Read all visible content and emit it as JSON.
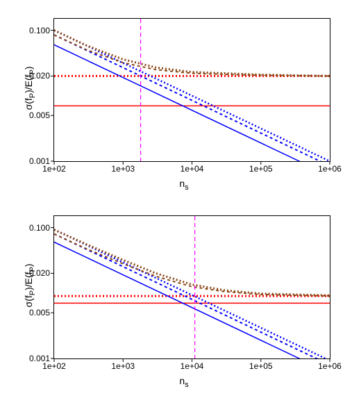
{
  "global": {
    "bg": "#ffffff",
    "axis_color": "#000000",
    "tick_font_size": 12,
    "label_font_size": 14
  },
  "panels": [
    {
      "id": "panel1",
      "xlabel_html": "n<sub class='sub'>s</sub>",
      "ylabel_html": "σ(f<sub class='sub'>P</sub>)/E(f<sub class='sub'>P</sub>)",
      "xscale": "log",
      "xlim": [
        100,
        1000000
      ],
      "yscale": "log",
      "ylim": [
        0.001,
        0.15
      ],
      "xticks": [
        {
          "v": 100,
          "label": "1e+02"
        },
        {
          "v": 1000,
          "label": "1e+03"
        },
        {
          "v": 10000,
          "label": "1e+04"
        },
        {
          "v": 100000,
          "label": "1e+05"
        },
        {
          "v": 1000000,
          "label": "1e+06"
        }
      ],
      "yticks": [
        {
          "v": 0.001,
          "label": "0.001"
        },
        {
          "v": 0.005,
          "label": "0.005"
        },
        {
          "v": 0.02,
          "label": "0.020"
        },
        {
          "v": 0.1,
          "label": "0.100"
        }
      ],
      "vline": {
        "x": 1800,
        "color": "#ff00ff",
        "dash": "6,4",
        "width": 1.2
      },
      "hlines": [
        {
          "y": 0.007,
          "color": "#ff0000",
          "dash": null,
          "width": 1.5
        },
        {
          "y": 0.02,
          "color": "#ff0000",
          "dash": "2,3",
          "width": 3
        }
      ],
      "series": [
        {
          "type": "line",
          "color": "#0000ff",
          "dash": null,
          "width": 1.5,
          "pts": [
            {
              "x": 100,
              "y": 0.06
            },
            {
              "x": 1000000,
              "y": 0.0006
            }
          ]
        },
        {
          "type": "line",
          "color": "#0000ff",
          "dash": "4,4",
          "width": 2,
          "pts": [
            {
              "x": 100,
              "y": 0.085
            },
            {
              "x": 1000000,
              "y": 0.00085
            }
          ]
        },
        {
          "type": "line",
          "color": "#0000ff",
          "dash": "2,3",
          "width": 2.5,
          "pts": [
            {
              "x": 100,
              "y": 0.1
            },
            {
              "x": 1000000,
              "y": 0.001
            }
          ]
        },
        {
          "type": "curve",
          "color": "#8b4513",
          "dash": "4,4",
          "width": 2,
          "pts": [
            {
              "x": 100,
              "y": 0.085
            },
            {
              "x": 300,
              "y": 0.05
            },
            {
              "x": 1000,
              "y": 0.032
            },
            {
              "x": 3000,
              "y": 0.025
            },
            {
              "x": 10000,
              "y": 0.022
            },
            {
              "x": 100000,
              "y": 0.0205
            },
            {
              "x": 1000000,
              "y": 0.02
            }
          ]
        },
        {
          "type": "curve",
          "color": "#8b4513",
          "dash": "2,3",
          "width": 3,
          "pts": [
            {
              "x": 100,
              "y": 0.1
            },
            {
              "x": 300,
              "y": 0.058
            },
            {
              "x": 1000,
              "y": 0.036
            },
            {
              "x": 3000,
              "y": 0.027
            },
            {
              "x": 10000,
              "y": 0.023
            },
            {
              "x": 100000,
              "y": 0.021
            },
            {
              "x": 1000000,
              "y": 0.02
            }
          ]
        }
      ]
    },
    {
      "id": "panel2",
      "xlabel_html": "n<sub class='sub'>s</sub>",
      "ylabel_html": "σ(f<sub class='sub'>P</sub>)/E(f<sub class='sub'>P</sub>)",
      "xscale": "log",
      "xlim": [
        100,
        1000000
      ],
      "yscale": "log",
      "ylim": [
        0.001,
        0.15
      ],
      "xticks": [
        {
          "v": 100,
          "label": "1e+02"
        },
        {
          "v": 1000,
          "label": "1e+03"
        },
        {
          "v": 10000,
          "label": "1e+04"
        },
        {
          "v": 100000,
          "label": "1e+05"
        },
        {
          "v": 1000000,
          "label": "1e+06"
        }
      ],
      "yticks": [
        {
          "v": 0.001,
          "label": "0.001"
        },
        {
          "v": 0.005,
          "label": "0.005"
        },
        {
          "v": 0.02,
          "label": "0.020"
        },
        {
          "v": 0.1,
          "label": "0.100"
        }
      ],
      "vline": {
        "x": 11000,
        "color": "#ff00ff",
        "dash": "6,4",
        "width": 1.2
      },
      "hlines": [
        {
          "y": 0.007,
          "color": "#ff0000",
          "dash": null,
          "width": 1.5
        },
        {
          "y": 0.009,
          "color": "#ff0000",
          "dash": "2,3",
          "width": 3
        }
      ],
      "series": [
        {
          "type": "line",
          "color": "#0000ff",
          "dash": null,
          "width": 1.5,
          "pts": [
            {
              "x": 100,
              "y": 0.06
            },
            {
              "x": 1000000,
              "y": 0.0006
            }
          ]
        },
        {
          "type": "line",
          "color": "#0000ff",
          "dash": "4,4",
          "width": 2,
          "pts": [
            {
              "x": 100,
              "y": 0.08
            },
            {
              "x": 1000000,
              "y": 0.0008
            }
          ]
        },
        {
          "type": "line",
          "color": "#0000ff",
          "dash": "2,3",
          "width": 2.5,
          "pts": [
            {
              "x": 100,
              "y": 0.093
            },
            {
              "x": 1000000,
              "y": 0.00093
            }
          ]
        },
        {
          "type": "curve",
          "color": "#8b4513",
          "dash": "4,4",
          "width": 2,
          "pts": [
            {
              "x": 100,
              "y": 0.08
            },
            {
              "x": 300,
              "y": 0.047
            },
            {
              "x": 1000,
              "y": 0.028
            },
            {
              "x": 3000,
              "y": 0.018
            },
            {
              "x": 10000,
              "y": 0.0125
            },
            {
              "x": 30000,
              "y": 0.0105
            },
            {
              "x": 100000,
              "y": 0.0095
            },
            {
              "x": 1000000,
              "y": 0.009
            }
          ]
        },
        {
          "type": "curve",
          "color": "#8b4513",
          "dash": "2,3",
          "width": 3,
          "pts": [
            {
              "x": 100,
              "y": 0.093
            },
            {
              "x": 300,
              "y": 0.055
            },
            {
              "x": 1000,
              "y": 0.032
            },
            {
              "x": 3000,
              "y": 0.02
            },
            {
              "x": 10000,
              "y": 0.0135
            },
            {
              "x": 30000,
              "y": 0.011
            },
            {
              "x": 100000,
              "y": 0.0098
            },
            {
              "x": 1000000,
              "y": 0.0092
            }
          ]
        }
      ]
    }
  ]
}
